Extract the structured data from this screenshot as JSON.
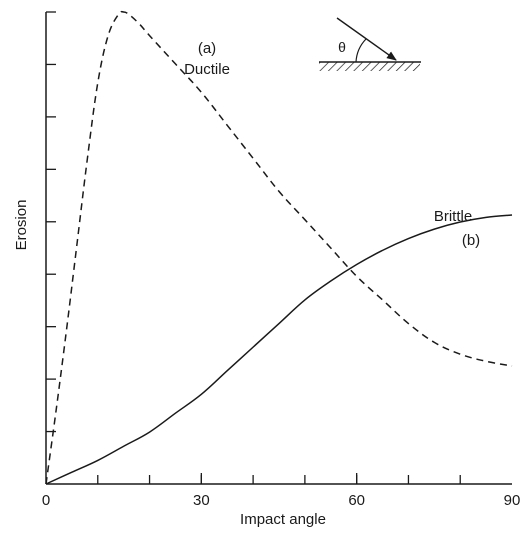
{
  "chart_data": {
    "type": "line",
    "title": "",
    "xlabel": "Impact angle",
    "ylabel": "Erosion",
    "xlim": [
      0,
      90
    ],
    "ylim": [
      0,
      1
    ],
    "x_ticks": [
      0,
      30,
      60,
      90
    ],
    "x_tick_labels": [
      "0",
      "30",
      "60",
      "90"
    ],
    "y_tick_count": 9,
    "y_tick_labels_shown": false,
    "grid": false,
    "series": [
      {
        "name": "Ductile",
        "tag": "(a)",
        "line_style": "dashed",
        "x": [
          0,
          2,
          4,
          6,
          8,
          10,
          12,
          14,
          15,
          16,
          18,
          20,
          25,
          30,
          35,
          40,
          45,
          50,
          55,
          60,
          65,
          70,
          75,
          80,
          85,
          90
        ],
        "y": [
          0.0,
          0.16,
          0.33,
          0.51,
          0.69,
          0.85,
          0.95,
          0.995,
          1.0,
          0.995,
          0.975,
          0.95,
          0.89,
          0.83,
          0.76,
          0.69,
          0.62,
          0.56,
          0.5,
          0.44,
          0.39,
          0.34,
          0.3,
          0.275,
          0.26,
          0.25
        ]
      },
      {
        "name": "Brittle",
        "tag": "(b)",
        "line_style": "solid",
        "x": [
          0,
          5,
          10,
          15,
          20,
          25,
          30,
          35,
          40,
          45,
          50,
          55,
          60,
          65,
          70,
          75,
          80,
          85,
          90
        ],
        "y": [
          0.0,
          0.025,
          0.05,
          0.08,
          0.11,
          0.15,
          0.19,
          0.24,
          0.29,
          0.34,
          0.39,
          0.43,
          0.465,
          0.495,
          0.52,
          0.54,
          0.555,
          0.565,
          0.57
        ]
      }
    ],
    "inset": {
      "angle_symbol": "θ"
    }
  },
  "colors": {
    "line": "#1a1a1a",
    "axis": "#1a1a1a",
    "text": "#1a1a1a"
  }
}
